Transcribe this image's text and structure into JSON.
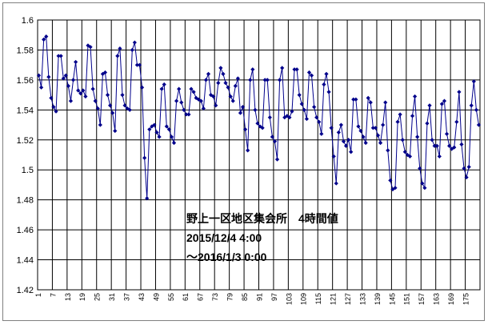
{
  "chart_data": {
    "type": "line",
    "title": "",
    "xlabel": "",
    "ylabel": "",
    "ylim": [
      1.42,
      1.6
    ],
    "yticks": [
      "1.42",
      "1.44",
      "1.46",
      "1.48",
      "1.5",
      "1.52",
      "1.54",
      "1.56",
      "1.58",
      "1.6"
    ],
    "xlim": [
      1,
      180
    ],
    "xticks": [
      1,
      7,
      13,
      19,
      25,
      31,
      37,
      43,
      49,
      55,
      61,
      67,
      73,
      79,
      85,
      91,
      97,
      103,
      109,
      115,
      121,
      127,
      133,
      139,
      145,
      151,
      157,
      163,
      169,
      175
    ],
    "grid": true,
    "colors": {
      "series": "#00008B",
      "grid": "#000000",
      "plot_bg": "#ffffff"
    },
    "annotation": [
      "野上一区地区集会所　4時間値",
      "2015/12/4 4:00",
      "～2016/1/3 0:00"
    ],
    "series": [
      {
        "marker": "diamond",
        "values": [
          1.563,
          1.555,
          1.587,
          1.589,
          1.562,
          1.548,
          1.542,
          1.539,
          1.576,
          1.576,
          1.561,
          1.563,
          1.556,
          1.546,
          1.56,
          1.572,
          1.553,
          1.551,
          1.553,
          1.549,
          1.583,
          1.582,
          1.554,
          1.546,
          1.541,
          1.53,
          1.564,
          1.565,
          1.55,
          1.543,
          1.538,
          1.526,
          1.576,
          1.581,
          1.55,
          1.543,
          1.541,
          1.54,
          1.58,
          1.585,
          1.57,
          1.57,
          1.555,
          1.508,
          1.481,
          1.527,
          1.529,
          1.53,
          1.525,
          1.522,
          1.554,
          1.557,
          1.529,
          1.527,
          1.522,
          1.518,
          1.546,
          1.554,
          1.545,
          1.54,
          1.537,
          1.537,
          1.554,
          1.552,
          1.548,
          1.547,
          1.546,
          1.541,
          1.56,
          1.564,
          1.55,
          1.549,
          1.543,
          1.558,
          1.568,
          1.564,
          1.558,
          1.555,
          1.549,
          1.546,
          1.556,
          1.561,
          1.538,
          1.542,
          1.527,
          1.513,
          1.56,
          1.567,
          1.54,
          1.531,
          1.529,
          1.528,
          1.56,
          1.56,
          1.535,
          1.522,
          1.519,
          1.507,
          1.56,
          1.568,
          1.535,
          1.536,
          1.535,
          1.539,
          1.567,
          1.567,
          1.55,
          1.544,
          1.54,
          1.534,
          1.565,
          1.563,
          1.542,
          1.535,
          1.532,
          1.524,
          1.557,
          1.564,
          1.552,
          1.528,
          1.509,
          1.491,
          1.525,
          1.53,
          1.519,
          1.516,
          1.52,
          1.512,
          1.547,
          1.547,
          1.529,
          1.526,
          1.522,
          1.518,
          1.548,
          1.545,
          1.528,
          1.528,
          1.523,
          1.518,
          1.53,
          1.545,
          1.513,
          1.493,
          1.487,
          1.488,
          1.532,
          1.537,
          1.52,
          1.512,
          1.51,
          1.509,
          1.536,
          1.549,
          1.522,
          1.501,
          1.491,
          1.488,
          1.531,
          1.543,
          1.52,
          1.516,
          1.516,
          1.509,
          1.544,
          1.546,
          1.524,
          1.516,
          1.514,
          1.515,
          1.532,
          1.552,
          1.517,
          1.501,
          1.495,
          1.502,
          1.543,
          1.559,
          1.54,
          1.53
        ]
      }
    ]
  }
}
